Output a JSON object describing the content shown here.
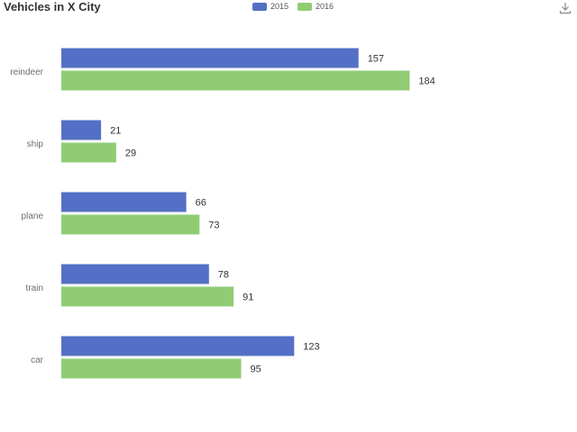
{
  "chart_data": {
    "type": "bar",
    "orientation": "horizontal",
    "title": "Vehicles in X City",
    "categories": [
      "reindeer",
      "ship",
      "plane",
      "train",
      "car"
    ],
    "series": [
      {
        "name": "2015",
        "color": "#5470c6",
        "values": [
          157,
          21,
          66,
          78,
          123
        ]
      },
      {
        "name": "2016",
        "color": "#91cc75",
        "values": [
          184,
          29,
          73,
          91,
          95
        ]
      }
    ],
    "xlim": [
      0,
      240
    ],
    "legend_position": "top-center",
    "grid": false
  },
  "toolbar": {
    "download_icon": "download-icon"
  }
}
